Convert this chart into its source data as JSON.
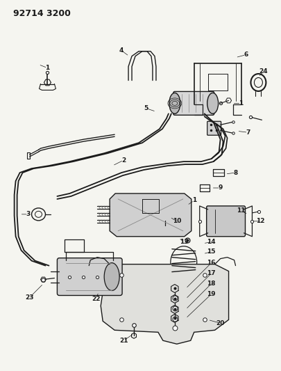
{
  "title": "92714 3200",
  "bg_color": "#f5f5f0",
  "line_color": "#1a1a1a",
  "title_fontsize": 9,
  "label_fontsize": 6.5,
  "fig_width": 4.06,
  "fig_height": 5.33,
  "dpi": 100
}
